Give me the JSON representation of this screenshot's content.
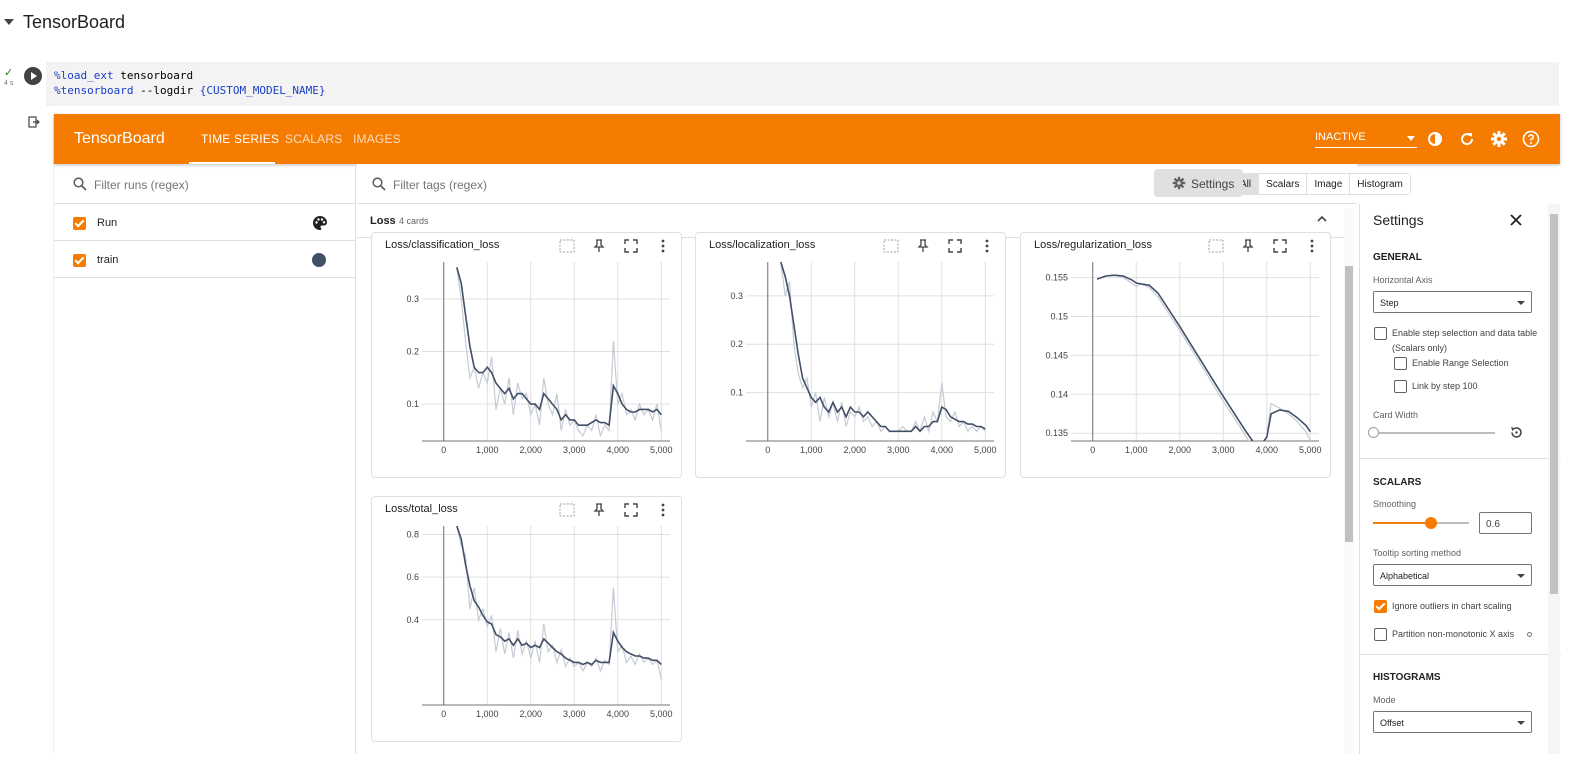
{
  "notebook": {
    "section_title": "TensorBoard",
    "cell": {
      "status": "✓",
      "duration": "4 s",
      "code_lines": [
        {
          "magic": "%load_ext",
          "rest": " tensorboard"
        },
        {
          "magic": "%tensorboard",
          "rest": " --logdir ",
          "braced": "{CUSTOM_MODEL_NAME}"
        }
      ]
    }
  },
  "tensorboard": {
    "logo": "TensorBoard",
    "tabs": [
      {
        "label": "TIME SERIES",
        "active": true
      },
      {
        "label": "SCALARS",
        "active": false
      },
      {
        "label": "IMAGES",
        "active": false
      }
    ],
    "run_status": "INACTIVE",
    "top_icons": [
      "theme-icon",
      "refresh-icon",
      "settings-gear-icon",
      "help-icon"
    ],
    "accent_color": "#f57c00",
    "runs": {
      "filter_placeholder": "Filter runs (regex)",
      "items": [
        {
          "label": "Run",
          "checked": true,
          "icon": "palette-icon"
        },
        {
          "label": "train",
          "checked": true,
          "color": "#425066"
        }
      ]
    },
    "tags": {
      "filter_placeholder": "Filter tags (regex)",
      "type_filters": [
        "All",
        "Scalars",
        "Image",
        "Histogram"
      ],
      "selected_type": "All",
      "settings_button": "Settings"
    },
    "group": {
      "name": "Loss",
      "count": "4 cards"
    },
    "settings": {
      "title": "Settings",
      "general_title": "GENERAL",
      "horizontal_axis_label": "Horizontal Axis",
      "horizontal_axis_value": "Step",
      "step_selection_label": "Enable step selection and data table",
      "step_selection_sub": "(Scalars only)",
      "range_selection_label": "Enable Range Selection",
      "link_by_step_label": "Link by step 100",
      "card_width_label": "Card Width",
      "scalars_title": "SCALARS",
      "smoothing_label": "Smoothing",
      "smoothing_value": "0.6",
      "smoothing": 0.6,
      "tooltip_label": "Tooltip sorting method",
      "tooltip_value": "Alphabetical",
      "ignore_outliers_label": "Ignore outliers in chart scaling",
      "ignore_outliers": true,
      "partition_label": "Partition non-monotonic X axis",
      "histograms_title": "HISTOGRAMS",
      "mode_label": "Mode",
      "mode_value": "Offset"
    }
  },
  "chart_data": [
    {
      "type": "line",
      "title": "Loss/classification_loss",
      "xlim": [
        -500,
        5200
      ],
      "ylim": [
        0.03,
        0.37
      ],
      "xticks": [
        0,
        1000,
        2000,
        3000,
        4000,
        5000
      ],
      "xtick_labels": [
        "0",
        "1,000",
        "2,000",
        "3,000",
        "4,000",
        "5,000"
      ],
      "yticks": [
        0.1,
        0.2,
        0.3
      ],
      "ytick_labels": [
        "0.1",
        "0.2",
        "0.3"
      ],
      "series": [
        {
          "style": "raw",
          "x": [
            300,
            400,
            500,
            600,
            700,
            800,
            900,
            1000,
            1100,
            1200,
            1300,
            1400,
            1500,
            1600,
            1700,
            1800,
            1900,
            2000,
            2100,
            2200,
            2300,
            2400,
            2500,
            2600,
            2700,
            2800,
            2900,
            3000,
            3100,
            3200,
            3300,
            3400,
            3500,
            3600,
            3700,
            3800,
            3900,
            4000,
            4100,
            4200,
            4300,
            4400,
            4500,
            4600,
            4700,
            4800,
            4900,
            5000
          ],
          "y": [
            0.36,
            0.3,
            0.22,
            0.15,
            0.17,
            0.13,
            0.16,
            0.14,
            0.19,
            0.09,
            0.13,
            0.1,
            0.15,
            0.08,
            0.14,
            0.11,
            0.12,
            0.08,
            0.1,
            0.06,
            0.15,
            0.1,
            0.08,
            0.12,
            0.05,
            0.09,
            0.06,
            0.07,
            0.05,
            0.04,
            0.06,
            0.05,
            0.08,
            0.04,
            0.06,
            0.05,
            0.22,
            0.1,
            0.12,
            0.08,
            0.09,
            0.07,
            0.1,
            0.08,
            0.09,
            0.07,
            0.1,
            0.05
          ]
        },
        {
          "style": "smoothed",
          "x": [
            300,
            400,
            500,
            600,
            700,
            800,
            900,
            1000,
            1100,
            1200,
            1300,
            1400,
            1500,
            1600,
            1700,
            1800,
            1900,
            2000,
            2100,
            2200,
            2300,
            2400,
            2500,
            2600,
            2700,
            2800,
            2900,
            3000,
            3100,
            3200,
            3300,
            3400,
            3500,
            3600,
            3700,
            3800,
            3900,
            4000,
            4100,
            4200,
            4300,
            4400,
            4500,
            4600,
            4700,
            4800,
            4900,
            5000
          ],
          "y": [
            0.36,
            0.33,
            0.27,
            0.21,
            0.17,
            0.16,
            0.16,
            0.17,
            0.16,
            0.14,
            0.13,
            0.12,
            0.13,
            0.11,
            0.12,
            0.12,
            0.11,
            0.1,
            0.1,
            0.09,
            0.12,
            0.11,
            0.1,
            0.09,
            0.07,
            0.08,
            0.07,
            0.07,
            0.06,
            0.06,
            0.06,
            0.065,
            0.07,
            0.065,
            0.065,
            0.06,
            0.135,
            0.12,
            0.1,
            0.09,
            0.085,
            0.085,
            0.09,
            0.09,
            0.09,
            0.085,
            0.09,
            0.08
          ]
        }
      ]
    },
    {
      "type": "line",
      "title": "Loss/localization_loss",
      "xlim": [
        -500,
        5200
      ],
      "ylim": [
        0.0,
        0.37
      ],
      "xticks": [
        0,
        1000,
        2000,
        3000,
        4000,
        5000
      ],
      "xtick_labels": [
        "0",
        "1,000",
        "2,000",
        "3,000",
        "4,000",
        "5,000"
      ],
      "yticks": [
        0.1,
        0.2,
        0.3
      ],
      "ytick_labels": [
        "0.1",
        "0.2",
        "0.3"
      ],
      "series": [
        {
          "style": "raw",
          "x": [
            300,
            400,
            500,
            600,
            700,
            800,
            900,
            1000,
            1100,
            1200,
            1300,
            1400,
            1500,
            1600,
            1700,
            1800,
            1900,
            2000,
            2100,
            2200,
            2300,
            2400,
            2500,
            2600,
            2700,
            2800,
            2900,
            3000,
            3100,
            3200,
            3300,
            3400,
            3500,
            3600,
            3700,
            3800,
            3900,
            4000,
            4100,
            4200,
            4300,
            4400,
            4500,
            4600,
            4700,
            4800,
            4900,
            5000
          ],
          "y": [
            0.37,
            0.3,
            0.33,
            0.2,
            0.14,
            0.11,
            0.13,
            0.07,
            0.1,
            0.04,
            0.09,
            0.05,
            0.08,
            0.04,
            0.08,
            0.03,
            0.06,
            0.05,
            0.07,
            0.04,
            0.05,
            0.03,
            0.04,
            0.02,
            0.03,
            0.02,
            0.02,
            0.02,
            0.03,
            0.02,
            0.02,
            0.04,
            0.02,
            0.05,
            0.02,
            0.06,
            0.04,
            0.12,
            0.05,
            0.04,
            0.06,
            0.03,
            0.04,
            0.02,
            0.03,
            0.02,
            0.03,
            0.02
          ]
        },
        {
          "style": "smoothed",
          "x": [
            300,
            400,
            500,
            600,
            700,
            800,
            900,
            1000,
            1100,
            1200,
            1300,
            1400,
            1500,
            1600,
            1700,
            1800,
            1900,
            2000,
            2100,
            2200,
            2300,
            2400,
            2500,
            2600,
            2700,
            2800,
            2900,
            3000,
            3100,
            3200,
            3300,
            3400,
            3500,
            3600,
            3700,
            3800,
            3900,
            4000,
            4100,
            4200,
            4300,
            4400,
            4500,
            4600,
            4700,
            4800,
            4900,
            5000
          ],
          "y": [
            0.37,
            0.34,
            0.3,
            0.24,
            0.18,
            0.13,
            0.11,
            0.09,
            0.08,
            0.09,
            0.07,
            0.06,
            0.08,
            0.06,
            0.07,
            0.05,
            0.07,
            0.06,
            0.06,
            0.05,
            0.06,
            0.05,
            0.04,
            0.03,
            0.03,
            0.02,
            0.02,
            0.02,
            0.02,
            0.02,
            0.02,
            0.03,
            0.02,
            0.03,
            0.03,
            0.04,
            0.04,
            0.07,
            0.065,
            0.05,
            0.045,
            0.04,
            0.04,
            0.035,
            0.035,
            0.03,
            0.03,
            0.025
          ]
        }
      ]
    },
    {
      "type": "line",
      "title": "Loss/regularization_loss",
      "xlim": [
        -500,
        5200
      ],
      "ylim": [
        0.134,
        0.157
      ],
      "xticks": [
        0,
        1000,
        2000,
        3000,
        4000,
        5000
      ],
      "xtick_labels": [
        "0",
        "1,000",
        "2,000",
        "3,000",
        "4,000",
        "5,000"
      ],
      "yticks": [
        0.135,
        0.14,
        0.145,
        0.15,
        0.155
      ],
      "ytick_labels": [
        "0.135",
        "0.14",
        "0.145",
        "0.15",
        "0.155"
      ],
      "series": [
        {
          "style": "raw",
          "x": [
            100,
            300,
            500,
            700,
            900,
            1000,
            1100,
            1300,
            1500,
            1700,
            2000,
            2300,
            2600,
            2900,
            3200,
            3500,
            3800,
            4000,
            4100,
            4300,
            4500,
            4700,
            4900,
            5000
          ],
          "y": [
            0.1548,
            0.1552,
            0.1553,
            0.155,
            0.1543,
            0.1538,
            0.1542,
            0.1537,
            0.1525,
            0.1508,
            0.1482,
            0.1455,
            0.1428,
            0.14,
            0.1374,
            0.1348,
            0.132,
            0.1345,
            0.1388,
            0.1382,
            0.1375,
            0.1365,
            0.1352,
            0.134
          ]
        },
        {
          "style": "smoothed",
          "x": [
            100,
            300,
            500,
            700,
            900,
            1000,
            1100,
            1300,
            1500,
            1700,
            2000,
            2300,
            2600,
            2900,
            3200,
            3500,
            3800,
            4000,
            4100,
            4300,
            4500,
            4700,
            4900,
            5000
          ],
          "y": [
            0.1548,
            0.1552,
            0.1553,
            0.1552,
            0.1547,
            0.1543,
            0.1542,
            0.154,
            0.153,
            0.1513,
            0.1487,
            0.146,
            0.1433,
            0.1406,
            0.138,
            0.1354,
            0.133,
            0.1345,
            0.1375,
            0.138,
            0.1378,
            0.137,
            0.136,
            0.1352
          ]
        }
      ]
    },
    {
      "type": "line",
      "title": "Loss/total_loss",
      "xlim": [
        -500,
        5200
      ],
      "ylim": [
        0.0,
        0.84
      ],
      "xticks": [
        0,
        1000,
        2000,
        3000,
        4000,
        5000
      ],
      "xtick_labels": [
        "0",
        "1,000",
        "2,000",
        "3,000",
        "4,000",
        "5,000"
      ],
      "yticks": [
        0.4,
        0.6,
        0.8
      ],
      "ytick_labels": [
        "0.4",
        "0.6",
        "0.8"
      ],
      "series": [
        {
          "style": "raw",
          "x": [
            300,
            400,
            500,
            600,
            700,
            800,
            900,
            1000,
            1100,
            1200,
            1300,
            1400,
            1500,
            1600,
            1700,
            1800,
            1900,
            2000,
            2100,
            2200,
            2300,
            2400,
            2500,
            2600,
            2700,
            2800,
            2900,
            3000,
            3100,
            3200,
            3300,
            3400,
            3500,
            3600,
            3700,
            3800,
            3900,
            4000,
            4100,
            4200,
            4300,
            4400,
            4500,
            4600,
            4700,
            4800,
            4900,
            5000
          ],
          "y": [
            0.84,
            0.75,
            0.7,
            0.45,
            0.55,
            0.4,
            0.45,
            0.37,
            0.42,
            0.25,
            0.36,
            0.24,
            0.34,
            0.22,
            0.35,
            0.24,
            0.3,
            0.22,
            0.3,
            0.2,
            0.38,
            0.25,
            0.28,
            0.2,
            0.26,
            0.18,
            0.22,
            0.18,
            0.2,
            0.16,
            0.2,
            0.18,
            0.22,
            0.16,
            0.21,
            0.19,
            0.55,
            0.25,
            0.28,
            0.2,
            0.23,
            0.19,
            0.24,
            0.2,
            0.22,
            0.19,
            0.21,
            0.12
          ]
        },
        {
          "style": "smoothed",
          "x": [
            300,
            400,
            500,
            600,
            700,
            800,
            900,
            1000,
            1100,
            1200,
            1300,
            1400,
            1500,
            1600,
            1700,
            1800,
            1900,
            2000,
            2100,
            2200,
            2300,
            2400,
            2500,
            2600,
            2700,
            2800,
            2900,
            3000,
            3100,
            3200,
            3300,
            3400,
            3500,
            3600,
            3700,
            3800,
            3900,
            4000,
            4100,
            4200,
            4300,
            4400,
            4500,
            4600,
            4700,
            4800,
            4900,
            5000
          ],
          "y": [
            0.84,
            0.78,
            0.66,
            0.56,
            0.49,
            0.46,
            0.42,
            0.39,
            0.38,
            0.33,
            0.32,
            0.3,
            0.31,
            0.28,
            0.31,
            0.28,
            0.29,
            0.27,
            0.28,
            0.27,
            0.31,
            0.29,
            0.27,
            0.25,
            0.24,
            0.22,
            0.21,
            0.2,
            0.2,
            0.19,
            0.2,
            0.19,
            0.21,
            0.2,
            0.2,
            0.2,
            0.34,
            0.3,
            0.27,
            0.25,
            0.24,
            0.23,
            0.23,
            0.22,
            0.22,
            0.21,
            0.21,
            0.19
          ]
        }
      ]
    }
  ]
}
